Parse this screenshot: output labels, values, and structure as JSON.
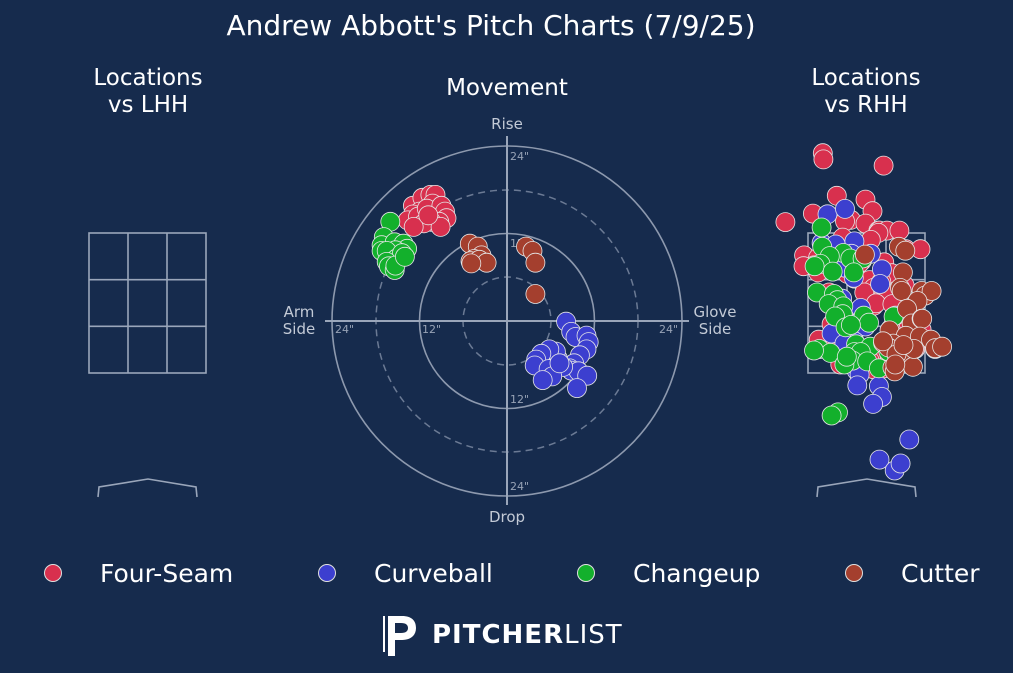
{
  "title": "Andrew Abbott's Pitch Charts (7/9/25)",
  "panels": {
    "lhh": {
      "title_line1": "Locations",
      "title_line2": "vs LHH"
    },
    "movement": {
      "title": "Movement",
      "label_top": "Rise",
      "label_bottom": "Drop",
      "label_left_1": "Arm",
      "label_left_2": "Side",
      "label_right_1": "Glove",
      "label_right_2": "Side",
      "ring_labels": {
        "top24": "24\"",
        "top12": "12\"",
        "bottom12": "12\"",
        "bottom24": "24\"",
        "left24": "24\"",
        "left12": "12\"",
        "right24": "24\""
      }
    },
    "rhh": {
      "title_line1": "Locations",
      "title_line2": "vs RHH"
    }
  },
  "legend": [
    {
      "name": "Four-Seam",
      "color": "#d8304e"
    },
    {
      "name": "Curveball",
      "color": "#3c3fcf"
    },
    {
      "name": "Changeup",
      "color": "#13b02c"
    },
    {
      "name": "Cutter",
      "color": "#a43f2e"
    }
  ],
  "brand": {
    "name_bold": "PITCHER",
    "name_light": "LIST",
    "icon": "pitcherlist-logo-icon"
  },
  "chart_data": [
    {
      "type": "scatter",
      "chart": "movement",
      "title": "Movement",
      "units": "inches",
      "xlim": [
        -24,
        24
      ],
      "ylim": [
        -24,
        24
      ],
      "series": [
        {
          "name": "Four-Seam",
          "points": [
            [
              -12.9,
              15.8
            ],
            [
              -11.6,
              16.9
            ],
            [
              -10.5,
              17.3
            ],
            [
              -9.8,
              17.3
            ],
            [
              -10.2,
              16.1
            ],
            [
              -12.0,
              15.0
            ],
            [
              -12.9,
              14.6
            ],
            [
              -13.6,
              13.8
            ],
            [
              -12.2,
              14.3
            ],
            [
              -11.0,
              15.4
            ],
            [
              -9.0,
              15.8
            ],
            [
              -8.5,
              15.0
            ],
            [
              -8.3,
              14.1
            ],
            [
              -9.3,
              13.6
            ],
            [
              -10.4,
              13.6
            ],
            [
              -11.4,
              13.4
            ],
            [
              -12.8,
              12.9
            ],
            [
              -9.1,
              12.9
            ],
            [
              -10.8,
              14.5
            ]
          ]
        },
        {
          "name": "Curveball",
          "points": [
            [
              8.1,
              -0.1
            ],
            [
              8.8,
              -1.5
            ],
            [
              9.4,
              -2.2
            ],
            [
              10.9,
              -2.0
            ],
            [
              11.2,
              -2.9
            ],
            [
              10.9,
              -3.9
            ],
            [
              10.0,
              -4.7
            ],
            [
              9.2,
              -5.8
            ],
            [
              8.6,
              -6.5
            ],
            [
              8.8,
              -6.8
            ],
            [
              9.8,
              -6.9
            ],
            [
              11.0,
              -7.5
            ],
            [
              9.6,
              -9.2
            ],
            [
              7.7,
              -6.3
            ],
            [
              7.0,
              -5.2
            ],
            [
              6.3,
              -4.7
            ],
            [
              6.7,
              -4.2
            ],
            [
              5.8,
              -3.9
            ],
            [
              4.7,
              -4.5
            ],
            [
              4.0,
              -5.3
            ],
            [
              3.8,
              -6.1
            ],
            [
              5.7,
              -6.6
            ],
            [
              6.2,
              -7.6
            ],
            [
              4.9,
              -8.1
            ],
            [
              7.2,
              -5.8
            ]
          ]
        },
        {
          "name": "Changeup",
          "points": [
            [
              -16.0,
              13.6
            ],
            [
              -16.9,
              11.5
            ],
            [
              -17.2,
              10.4
            ],
            [
              -17.2,
              9.6
            ],
            [
              -15.4,
              10.8
            ],
            [
              -14.2,
              10.6
            ],
            [
              -13.7,
              9.9
            ],
            [
              -15.3,
              9.7
            ],
            [
              -16.5,
              9.6
            ],
            [
              -15.1,
              8.6
            ],
            [
              -14.4,
              9.3
            ],
            [
              -16.5,
              8.1
            ],
            [
              -16.2,
              7.5
            ],
            [
              -15.4,
              7.0
            ],
            [
              -15.3,
              7.6
            ],
            [
              -14.0,
              8.8
            ]
          ]
        },
        {
          "name": "Cutter",
          "points": [
            [
              -5.1,
              10.6
            ],
            [
              -4.0,
              10.2
            ],
            [
              -3.5,
              9.0
            ],
            [
              -4.5,
              8.5
            ],
            [
              -5.0,
              8.2
            ],
            [
              -3.8,
              8.4
            ],
            [
              -2.8,
              8.0
            ],
            [
              -4.9,
              7.9
            ],
            [
              2.6,
              10.2
            ],
            [
              3.5,
              9.6
            ],
            [
              3.9,
              8.0
            ],
            [
              3.9,
              3.7
            ]
          ]
        }
      ]
    },
    {
      "type": "scatter",
      "chart": "locations_vs_lhh",
      "title": "Locations vs LHH",
      "series": []
    },
    {
      "type": "scatter",
      "chart": "locations_vs_rhh",
      "title": "Locations vs RHH",
      "units": "feet",
      "xlim": [
        -1.83,
        1.83
      ],
      "ylim": [
        -0.33,
        4.71
      ],
      "series": [
        {
          "name": "Four-Seam",
          "points": [
            [
              -0.79,
              4.41
            ],
            [
              -0.78,
              4.33
            ],
            [
              0.25,
              4.25
            ],
            [
              -0.55,
              3.86
            ],
            [
              -0.06,
              3.81
            ],
            [
              -0.96,
              3.63
            ],
            [
              0.06,
              3.66
            ],
            [
              -0.31,
              3.55
            ],
            [
              -0.06,
              3.5
            ],
            [
              -0.41,
              3.53
            ],
            [
              -1.43,
              3.52
            ],
            [
              0.16,
              3.41
            ],
            [
              0.18,
              3.41
            ],
            [
              0.31,
              3.41
            ],
            [
              0.16,
              3.38
            ],
            [
              -0.45,
              3.32
            ],
            [
              0.52,
              3.41
            ],
            [
              0.03,
              3.29
            ],
            [
              0.63,
              3.17
            ],
            [
              0.88,
              3.17
            ],
            [
              -1.11,
              3.09
            ],
            [
              -0.87,
              3.06
            ],
            [
              -0.34,
              3.04
            ],
            [
              -0.12,
              3.02
            ],
            [
              -0.58,
              3.09
            ],
            [
              -0.16,
              2.99
            ],
            [
              -0.42,
              2.98
            ],
            [
              -0.68,
              2.94
            ],
            [
              -0.74,
              2.95
            ],
            [
              -0.94,
              2.96
            ],
            [
              0.26,
              3.0
            ],
            [
              -1.12,
              2.95
            ],
            [
              -0.87,
              2.87
            ],
            [
              -0.25,
              2.79
            ],
            [
              0.39,
              2.86
            ],
            [
              0.01,
              2.77
            ],
            [
              0.21,
              2.75
            ],
            [
              -0.37,
              2.85
            ],
            [
              0.08,
              2.67
            ],
            [
              0.61,
              2.7
            ],
            [
              0.25,
              2.62
            ],
            [
              0.08,
              2.44
            ],
            [
              -0.08,
              2.61
            ],
            [
              -0.68,
              2.61
            ],
            [
              0.12,
              2.47
            ],
            [
              0.4,
              2.46
            ],
            [
              -0.64,
              2.2
            ],
            [
              -0.04,
              2.23
            ],
            [
              0.43,
              2.24
            ],
            [
              0.57,
              2.23
            ],
            [
              0.81,
              2.24
            ],
            [
              0.9,
              2.13
            ],
            [
              0.37,
              2.14
            ],
            [
              -0.44,
              2.05
            ],
            [
              -0.86,
              2.0
            ],
            [
              0.58,
              1.94
            ],
            [
              0.79,
              1.88
            ],
            [
              -0.69,
              1.87
            ],
            [
              -0.55,
              1.86
            ],
            [
              -0.35,
              1.85
            ],
            [
              -0.26,
              1.83
            ],
            [
              0.06,
              1.82
            ],
            [
              0.35,
              1.8
            ],
            [
              0.63,
              1.76
            ],
            [
              0.66,
              1.84
            ],
            [
              0.01,
              1.73
            ],
            [
              -0.39,
              1.75
            ],
            [
              -0.49,
              1.68
            ],
            [
              -0.04,
              1.71
            ],
            [
              0.26,
              1.63
            ],
            [
              0.07,
              1.62
            ]
          ]
        },
        {
          "name": "Curveball",
          "points": [
            [
              -0.71,
              3.62
            ],
            [
              -0.41,
              3.69
            ],
            [
              -0.25,
              3.27
            ],
            [
              -0.81,
              3.25
            ],
            [
              -0.57,
              3.23
            ],
            [
              0.03,
              3.11
            ],
            [
              -0.3,
              3.11
            ],
            [
              -0.41,
              2.93
            ],
            [
              0.22,
              2.91
            ],
            [
              -0.26,
              2.8
            ],
            [
              0.19,
              2.72
            ],
            [
              -0.46,
              2.53
            ],
            [
              -0.14,
              2.41
            ],
            [
              0.45,
              2.31
            ],
            [
              -0.28,
              2.2
            ],
            [
              -0.06,
              2.17
            ],
            [
              -0.45,
              2.08
            ],
            [
              -0.64,
              2.08
            ],
            [
              -0.25,
              1.98
            ],
            [
              -0.42,
              1.95
            ],
            [
              -0.13,
              1.89
            ],
            [
              0.46,
              1.81
            ],
            [
              0.4,
              1.65
            ],
            [
              -0.21,
              1.6
            ],
            [
              -0.16,
              1.55
            ],
            [
              -0.2,
              1.41
            ],
            [
              0.17,
              1.4
            ],
            [
              0.22,
              1.26
            ],
            [
              0.07,
              1.17
            ],
            [
              0.69,
              0.71
            ],
            [
              0.18,
              0.45
            ],
            [
              0.44,
              0.31
            ],
            [
              0.54,
              0.4
            ]
          ]
        },
        {
          "name": "Changeup",
          "points": [
            [
              -0.81,
              3.45
            ],
            [
              -0.8,
              3.2
            ],
            [
              -0.44,
              3.12
            ],
            [
              -0.67,
              3.08
            ],
            [
              -0.32,
              3.05
            ],
            [
              -0.11,
              3.05
            ],
            [
              -0.83,
              2.98
            ],
            [
              -0.93,
              2.95
            ],
            [
              -0.62,
              2.88
            ],
            [
              -0.26,
              2.87
            ],
            [
              -0.89,
              2.61
            ],
            [
              -0.6,
              2.59
            ],
            [
              -0.54,
              2.51
            ],
            [
              -0.69,
              2.46
            ],
            [
              -0.44,
              2.43
            ],
            [
              -0.45,
              2.33
            ],
            [
              0.42,
              2.3
            ],
            [
              -0.58,
              2.3
            ],
            [
              -0.09,
              2.31
            ],
            [
              0.0,
              2.22
            ],
            [
              -0.4,
              2.16
            ],
            [
              -0.31,
              2.19
            ],
            [
              -0.22,
              1.94
            ],
            [
              0.02,
              1.91
            ],
            [
              -0.25,
              1.84
            ],
            [
              0.33,
              1.85
            ],
            [
              -0.14,
              1.84
            ],
            [
              -0.85,
              1.88
            ],
            [
              -0.66,
              1.83
            ],
            [
              -0.94,
              1.86
            ],
            [
              -0.28,
              1.73
            ],
            [
              -0.42,
              1.68
            ],
            [
              -0.03,
              1.72
            ],
            [
              0.17,
              1.63
            ],
            [
              -0.53,
              1.06
            ],
            [
              -0.38,
              1.78
            ],
            [
              -0.64,
              1.02
            ]
          ]
        },
        {
          "name": "Cutter",
          "points": [
            [
              -0.07,
              3.1
            ],
            [
              0.51,
              3.2
            ],
            [
              0.58,
              2.87
            ],
            [
              0.62,
              3.15
            ],
            [
              0.53,
              2.67
            ],
            [
              0.56,
              2.63
            ],
            [
              0.9,
              2.63
            ],
            [
              0.96,
              2.57
            ],
            [
              1.07,
              2.63
            ],
            [
              0.83,
              2.5
            ],
            [
              0.65,
              2.4
            ],
            [
              0.73,
              2.21
            ],
            [
              0.9,
              2.27
            ],
            [
              0.91,
              2.27
            ],
            [
              0.35,
              2.12
            ],
            [
              0.63,
              2.05
            ],
            [
              0.87,
              2.04
            ],
            [
              1.06,
              2.0
            ],
            [
              0.24,
              1.96
            ],
            [
              0.41,
              1.95
            ],
            [
              0.33,
              1.9
            ],
            [
              0.61,
              1.77
            ],
            [
              0.75,
              1.65
            ],
            [
              0.4,
              1.64
            ],
            [
              0.44,
              1.59
            ],
            [
              1.13,
              1.88
            ],
            [
              1.13,
              1.89
            ],
            [
              0.24,
              1.98
            ],
            [
              0.77,
              1.88
            ],
            [
              0.47,
              1.81
            ],
            [
              0.45,
              1.68
            ],
            [
              1.25,
              1.91
            ],
            [
              0.59,
              1.93
            ]
          ]
        }
      ]
    }
  ]
}
